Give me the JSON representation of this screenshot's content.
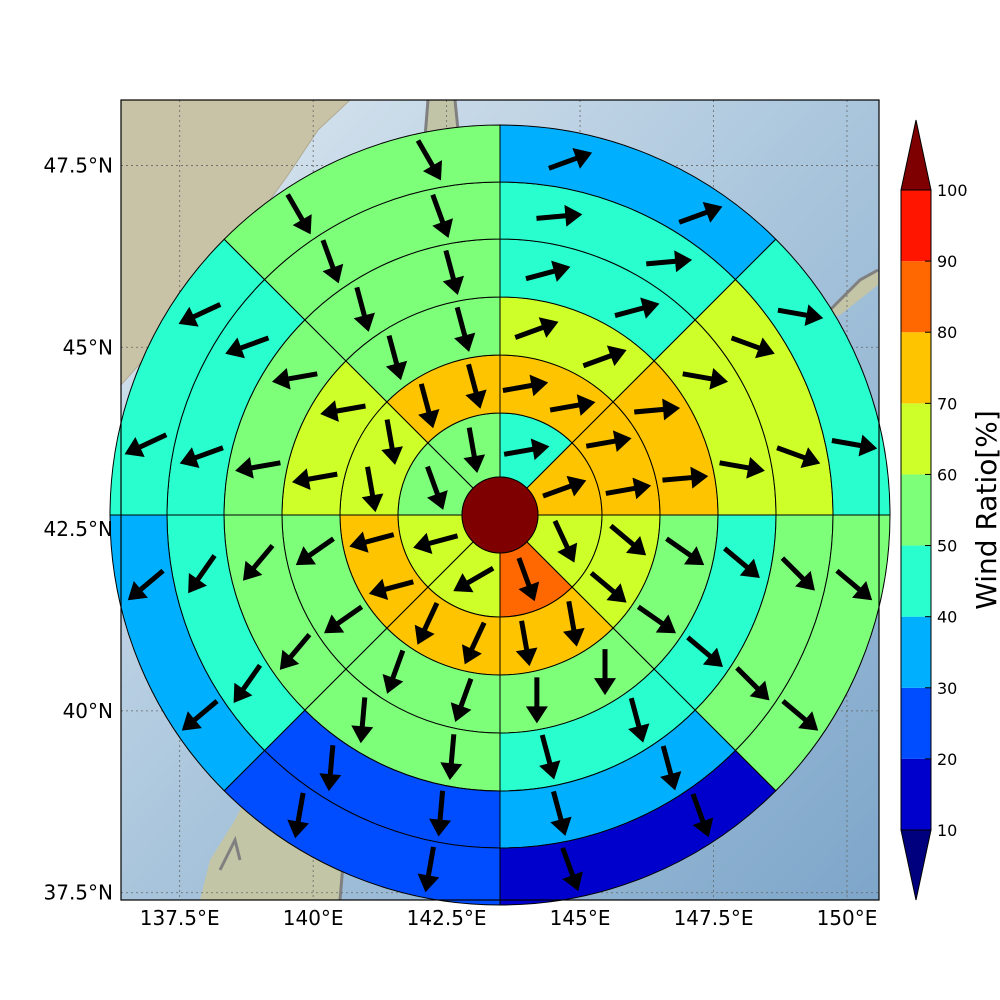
{
  "chart_data": {
    "type": "heatmap",
    "title": "",
    "projection": "polar-sector map (rings x 8 sectors) with wind vectors",
    "x_ticks": [
      "137.5°E",
      "140°E",
      "142.5°E",
      "145°E",
      "147.5°E",
      "150°E"
    ],
    "y_ticks": [
      "47.5°N",
      "45°N",
      "42.5°N",
      "40°N",
      "37.5°N"
    ],
    "xlim": [
      136.4,
      150.6
    ],
    "ylim": [
      37.4,
      48.4
    ],
    "grid": true,
    "center": {
      "lon": 143.4,
      "lat": 43.0,
      "value": 100
    },
    "sector_order": [
      "NNE",
      "ENE",
      "ESE",
      "SSE",
      "SSW",
      "WSW",
      "WNW",
      "NNW"
    ],
    "rings": [
      {
        "name": "ring 1",
        "values": [
          45,
          75,
          65,
          85,
          65,
          65,
          55,
          55
        ],
        "arrow_dir_deg": [
          80,
          70,
          155,
          160,
          240,
          255,
          160,
          170
        ]
      },
      {
        "name": "ring 2",
        "values": [
          70,
          70,
          65,
          75,
          75,
          75,
          65,
          70
        ],
        "arrow_dir_deg": [
          80,
          80,
          130,
          170,
          205,
          255,
          170,
          165
        ],
        "half_values": {
          "inner": [
            70,
            70,
            65,
            75,
            75,
            75,
            65,
            70
          ],
          "outer": [
            70,
            70,
            65,
            75,
            75,
            75,
            65,
            70
          ]
        }
      },
      {
        "name": "ring 3",
        "values": [
          65,
          75,
          55,
          55,
          55,
          55,
          65,
          55
        ],
        "arrow_dir_deg": [
          70,
          85,
          125,
          180,
          200,
          235,
          260,
          165
        ]
      },
      {
        "name": "ring 4",
        "values": [
          45,
          65,
          45,
          45,
          55,
          55,
          55,
          55
        ],
        "arrow_dir_deg": [
          75,
          100,
          130,
          165,
          185,
          220,
          260,
          165
        ]
      },
      {
        "name": "ring 5",
        "values": [
          45,
          65,
          55,
          35,
          25,
          45,
          45,
          55
        ],
        "arrow_dir_deg": [
          85,
          110,
          135,
          165,
          185,
          215,
          250,
          160
        ]
      },
      {
        "name": "ring 6",
        "values": [
          35,
          45,
          55,
          15,
          25,
          35,
          45,
          55
        ],
        "arrow_dir_deg": [
          70,
          100,
          130,
          160,
          190,
          230,
          245,
          150
        ]
      }
    ],
    "colorbar": {
      "label": "Wind Ratio[%]",
      "ticks": [
        "10",
        "20",
        "30",
        "40",
        "50",
        "60",
        "70",
        "80",
        "90",
        "100"
      ],
      "levels": [
        10,
        20,
        30,
        40,
        50,
        60,
        70,
        80,
        90,
        100
      ],
      "colors": [
        "#0000cd",
        "#004cff",
        "#00b0ff",
        "#29ffce",
        "#7dff7a",
        "#ceff29",
        "#ffc400",
        "#ff6800",
        "#ff1500"
      ],
      "under_color": "#00007f",
      "over_color": "#7f0000",
      "extend": "both"
    }
  }
}
